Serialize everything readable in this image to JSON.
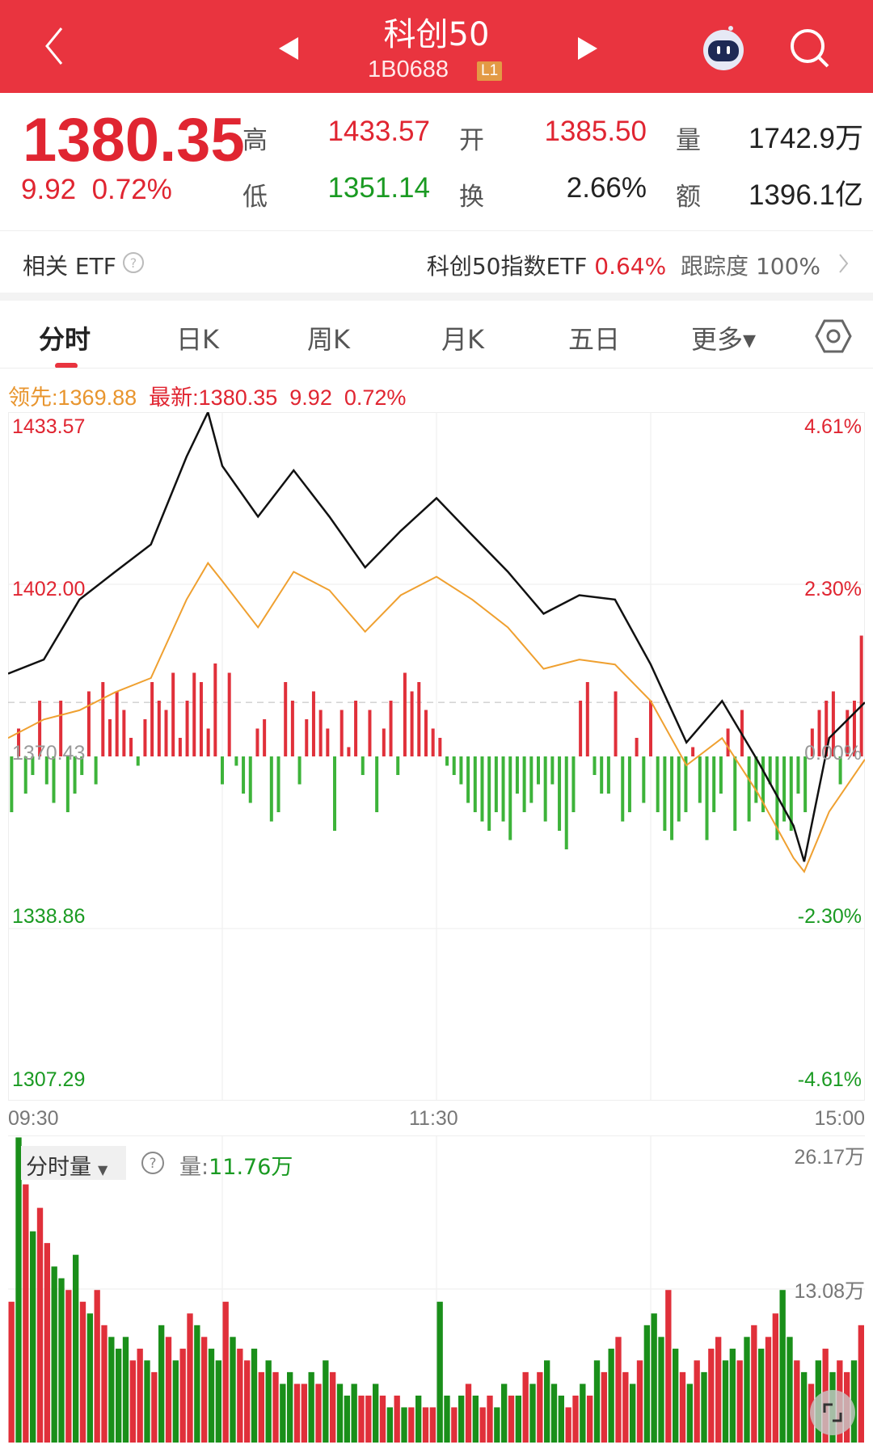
{
  "header": {
    "title": "科创50",
    "code": "1B0688",
    "level_badge": "L1",
    "icons": [
      "back-arrow-icon",
      "prev-triangle-icon",
      "next-triangle-icon",
      "robot-assistant-icon",
      "search-icon"
    ]
  },
  "quote": {
    "price": "1380.35",
    "change": "9.92",
    "change_pct": "0.72%",
    "high_label": "高",
    "high": "1433.57",
    "low_label": "低",
    "low": "1351.14",
    "open_label": "开",
    "open": "1385.50",
    "turnover_label": "换",
    "turnover": "2.66%",
    "volume_label": "量",
    "volume": "1742.9万",
    "amount_label": "额",
    "amount": "1396.1亿"
  },
  "etf": {
    "label": "相关 ETF",
    "name": "科创50指数ETF",
    "pct": "0.64%",
    "tracking_label": "跟踪度",
    "tracking": "100%"
  },
  "tabs": [
    {
      "label": "分时",
      "active": true
    },
    {
      "label": "日K"
    },
    {
      "label": "周K"
    },
    {
      "label": "月K"
    },
    {
      "label": "五日"
    },
    {
      "label": "更多▾"
    }
  ],
  "legend": {
    "lead_label": "领先:",
    "lead": "1369.88",
    "latest_label": "最新:",
    "latest": "1380.35",
    "chg": "9.92",
    "pct": "0.72%"
  },
  "colors": {
    "header": "#e9343f",
    "up": "#e02531",
    "down": "#1a9a22",
    "lead_line": "#efa030",
    "price_line": "#111111"
  },
  "chart_data": {
    "type": "line",
    "y_left_ticks": [
      "1433.57",
      "1402.00",
      "1370.43",
      "1338.86",
      "1307.29"
    ],
    "y_right_ticks": [
      "4.61%",
      "2.30%",
      "0.00%",
      "-2.30%",
      "-4.61%"
    ],
    "ylim": [
      1307.29,
      1433.57
    ],
    "prev_close": 1370.43,
    "x_ticks": [
      "09:30",
      "11:30",
      "15:00"
    ],
    "series": [
      {
        "name": "最新",
        "points": [
          [
            "09:30",
            1385.6
          ],
          [
            "09:40",
            1388.2
          ],
          [
            "09:50",
            1399.2
          ],
          [
            "10:00",
            1404.3
          ],
          [
            "10:10",
            1409.3
          ],
          [
            "10:20",
            1425.4
          ],
          [
            "10:26",
            1433.57
          ],
          [
            "10:30",
            1423.7
          ],
          [
            "10:40",
            1414.4
          ],
          [
            "10:50",
            1422.9
          ],
          [
            "11:00",
            1414.4
          ],
          [
            "11:10",
            1405.1
          ],
          [
            "11:20",
            1411.8
          ],
          [
            "11:30",
            1417.8
          ],
          [
            "13:10",
            1411.0
          ],
          [
            "13:20",
            1404.3
          ],
          [
            "13:30",
            1396.6
          ],
          [
            "13:40",
            1400.0
          ],
          [
            "13:50",
            1399.2
          ],
          [
            "14:00",
            1387.3
          ],
          [
            "14:10",
            1373.0
          ],
          [
            "14:20",
            1380.6
          ],
          [
            "14:30",
            1369.6
          ],
          [
            "14:40",
            1357.7
          ],
          [
            "14:43",
            1351.14
          ],
          [
            "14:50",
            1373.8
          ],
          [
            "15:00",
            1380.35
          ]
        ]
      },
      {
        "name": "领先",
        "points": [
          [
            "09:30",
            1373.8
          ],
          [
            "09:40",
            1377.2
          ],
          [
            "09:50",
            1378.9
          ],
          [
            "10:00",
            1382.2
          ],
          [
            "10:10",
            1384.8
          ],
          [
            "10:20",
            1399.2
          ],
          [
            "10:26",
            1405.9
          ],
          [
            "10:30",
            1402.6
          ],
          [
            "10:40",
            1394.1
          ],
          [
            "10:50",
            1404.3
          ],
          [
            "11:00",
            1400.9
          ],
          [
            "11:10",
            1393.3
          ],
          [
            "11:20",
            1400.0
          ],
          [
            "11:30",
            1403.4
          ],
          [
            "13:10",
            1399.2
          ],
          [
            "13:20",
            1394.1
          ],
          [
            "13:30",
            1386.5
          ],
          [
            "13:40",
            1388.2
          ],
          [
            "13:50",
            1387.3
          ],
          [
            "14:00",
            1380.6
          ],
          [
            "14:10",
            1368.8
          ],
          [
            "14:20",
            1373.8
          ],
          [
            "14:30",
            1363.7
          ],
          [
            "14:40",
            1351.8
          ],
          [
            "14:43",
            1349.3
          ],
          [
            "14:50",
            1360.3
          ],
          [
            "15:00",
            1369.88
          ]
        ]
      }
    ],
    "indicator_bars": [
      -6,
      3,
      -4,
      -2,
      6,
      -3,
      -5,
      6,
      -6,
      -4,
      -2,
      7,
      -3,
      8,
      4,
      7,
      5,
      2,
      -1,
      4,
      8,
      6,
      5,
      9,
      2,
      6,
      9,
      8,
      3,
      10,
      -3,
      9,
      -1,
      -4,
      -5,
      3,
      4,
      -7,
      -6,
      8,
      6,
      -3,
      4,
      7,
      5,
      3,
      -8,
      5,
      1,
      6,
      -2,
      5,
      -6,
      3,
      6,
      -2,
      9,
      7,
      8,
      5,
      3,
      2,
      -1,
      -2,
      -3,
      -5,
      -6,
      -7,
      -8,
      -6,
      -7,
      -9,
      -4,
      -6,
      -5,
      -3,
      -7,
      -3,
      -8,
      -10,
      -6,
      6,
      8,
      -2,
      -4,
      -4,
      7,
      -7,
      -6,
      2,
      -5,
      6,
      -6,
      -8,
      -9,
      -7,
      -6,
      1,
      -5,
      -9,
      -6,
      -4,
      3,
      -8,
      5,
      -7,
      -5,
      -6,
      -3,
      -9,
      -7,
      -8,
      -4,
      -6,
      3,
      5,
      6,
      7,
      -3,
      5,
      6,
      13
    ]
  },
  "volume": {
    "selector": "分时量",
    "label": "量:",
    "value": "11.76万",
    "max_label": "26.17万",
    "mid_label": "13.08万",
    "max": 26.17,
    "bars": [
      12,
      26,
      22,
      18,
      20,
      17,
      15,
      14,
      13,
      16,
      12,
      11,
      13,
      10,
      9,
      8,
      9,
      7,
      8,
      7,
      6,
      10,
      9,
      7,
      8,
      11,
      10,
      9,
      8,
      7,
      12,
      9,
      8,
      7,
      8,
      6,
      7,
      6,
      5,
      6,
      5,
      5,
      6,
      5,
      7,
      6,
      5,
      4,
      5,
      4,
      4,
      5,
      4,
      3,
      4,
      3,
      3,
      4,
      3,
      3,
      12,
      4,
      3,
      4,
      5,
      4,
      3,
      4,
      3,
      5,
      4,
      4,
      6,
      5,
      6,
      7,
      5,
      4,
      3,
      4,
      5,
      4,
      7,
      6,
      8,
      9,
      6,
      5,
      7,
      10,
      11,
      9,
      13,
      8,
      6,
      5,
      7,
      6,
      8,
      9,
      7,
      8,
      7,
      9,
      10,
      8,
      9,
      11,
      13,
      9,
      7,
      6,
      5,
      7,
      8,
      6,
      7,
      6,
      7,
      10
    ],
    "colors": "rgrgrrggrgrgrrgggrrgrgrgrrgrggrgrrgrgrggrrgrgrgggrrgrgrgrgrrggrgrgrrggrgrgrgggrrgrgrgrrgrgggrgrgrgrrggrgrgrrggrgrgrgrrg"
  }
}
